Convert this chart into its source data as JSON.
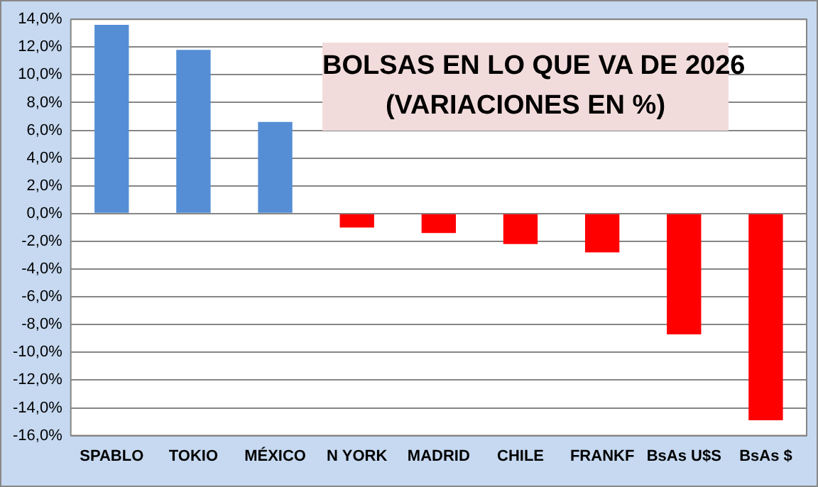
{
  "chart_data": {
    "type": "bar",
    "title": "BOLSAS EN LO QUE VA DE 2026\n(VARIACIONES EN %)",
    "categories": [
      "SPABLO",
      "TOKIO",
      "MÉXICO",
      "N YORK",
      "MADRID",
      "CHILE",
      "FRANKF",
      "BsAs U$S",
      "BsAs $"
    ],
    "values": [
      13.6,
      11.8,
      6.6,
      -1.0,
      -1.4,
      -2.2,
      -2.8,
      -8.7,
      -14.9
    ],
    "colors": [
      "#558ed5",
      "#558ed5",
      "#558ed5",
      "#ff0000",
      "#ff0000",
      "#ff0000",
      "#ff0000",
      "#ff0000",
      "#ff0000"
    ],
    "ylim": [
      -16,
      14
    ],
    "yticks": [
      {
        "value": -16,
        "label": "-16,0%"
      },
      {
        "value": -14,
        "label": "-14,0%"
      },
      {
        "value": -12,
        "label": "-12,0%"
      },
      {
        "value": -10,
        "label": "-10,0%"
      },
      {
        "value": -8,
        "label": "-8,0%"
      },
      {
        "value": -6,
        "label": "-6,0%"
      },
      {
        "value": -4,
        "label": "-4,0%"
      },
      {
        "value": -2,
        "label": "-2,0%"
      },
      {
        "value": 0,
        "label": "0,0%"
      },
      {
        "value": 2,
        "label": "2,0%"
      },
      {
        "value": 4,
        "label": "4,0%"
      },
      {
        "value": 6,
        "label": "6,0%"
      },
      {
        "value": 8,
        "label": "8,0%"
      },
      {
        "value": 10,
        "label": "10,0%"
      },
      {
        "value": 12,
        "label": "12,0%"
      },
      {
        "value": 14,
        "label": "14,0%"
      }
    ],
    "grid": "y",
    "legend": false
  }
}
